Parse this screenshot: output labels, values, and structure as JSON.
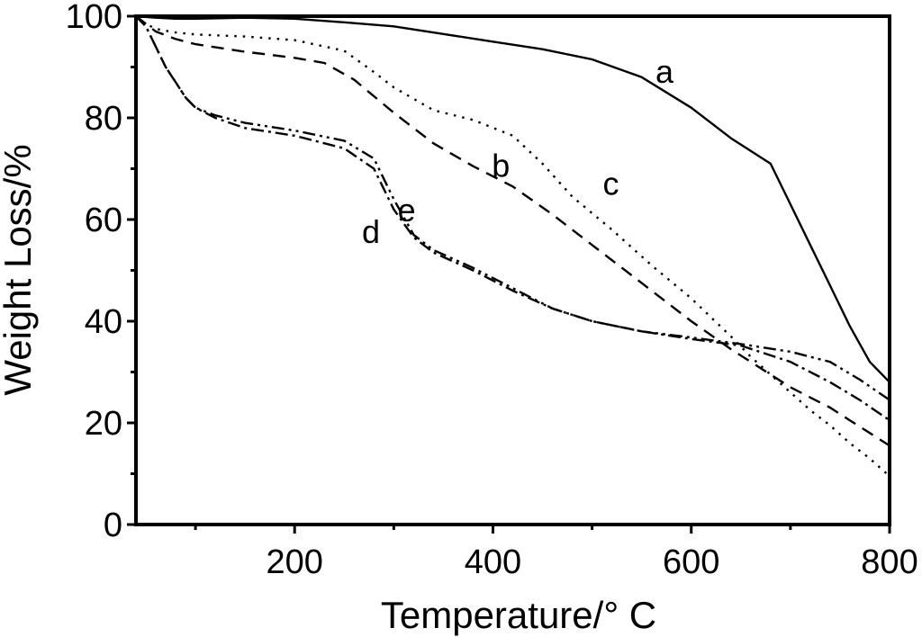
{
  "chart_data": {
    "type": "line",
    "title": "",
    "xlabel": "Temperature/° C",
    "ylabel": "Weight Loss/%",
    "xlim": [
      40,
      800
    ],
    "ylim": [
      0,
      100
    ],
    "x_ticks": [
      200,
      400,
      600,
      800
    ],
    "x_minor_ticks": [
      100,
      300,
      500,
      700
    ],
    "y_ticks": [
      0,
      20,
      40,
      60,
      80,
      100
    ],
    "y_minor_ticks": [
      10,
      30,
      50,
      70,
      90
    ],
    "grid": false,
    "legend": "none",
    "series": [
      {
        "name": "a",
        "label": "a",
        "dash": "solid",
        "label_at": [
          573,
          89
        ],
        "x": [
          40,
          60,
          80,
          100,
          150,
          200,
          250,
          300,
          350,
          400,
          450,
          500,
          550,
          600,
          640,
          680,
          700,
          720,
          740,
          760,
          780,
          800
        ],
        "y": [
          100,
          99.7,
          99.5,
          99.5,
          99.7,
          99.5,
          98.8,
          98,
          96.5,
          95,
          93.5,
          91.5,
          88,
          82,
          76,
          71,
          63,
          55,
          47,
          39,
          32,
          28
        ]
      },
      {
        "name": "b",
        "label": "b",
        "dash": "14 9",
        "label_at": [
          408,
          70.5
        ],
        "x": [
          40,
          50,
          60,
          80,
          100,
          150,
          200,
          230,
          260,
          300,
          340,
          380,
          420,
          460,
          500,
          550,
          600,
          640,
          660,
          680,
          700,
          720,
          740,
          760,
          780,
          800
        ],
        "y": [
          100,
          98.5,
          97,
          95.5,
          94.5,
          93,
          91.8,
          90.8,
          87.5,
          81,
          75,
          70.5,
          66.5,
          61,
          55,
          47.5,
          40,
          34.5,
          32,
          29.5,
          27,
          25,
          23,
          20.5,
          18,
          15.5
        ]
      },
      {
        "name": "c",
        "label": "c",
        "dash": "2.5 7",
        "label_at": [
          519,
          67
        ],
        "x": [
          40,
          50,
          60,
          80,
          100,
          150,
          200,
          250,
          280,
          300,
          340,
          380,
          420,
          450,
          480,
          520,
          560,
          600,
          640,
          660,
          680,
          700,
          720,
          740,
          760,
          780,
          800
        ],
        "y": [
          100,
          98.5,
          97.5,
          96.8,
          96.4,
          96,
          95.3,
          93.2,
          89,
          86,
          81.5,
          79.6,
          76.5,
          71,
          64.5,
          58,
          51,
          44.5,
          37,
          33,
          29.5,
          26,
          22.5,
          19.5,
          16,
          13,
          9.5
        ]
      },
      {
        "name": "d",
        "label": "d",
        "dash": "14 5 3 5",
        "label_at": [
          277,
          57.5
        ],
        "x": [
          40,
          50,
          60,
          70,
          80,
          90,
          100,
          120,
          150,
          200,
          250,
          280,
          300,
          320,
          340,
          380,
          420,
          460,
          500,
          550,
          600,
          650,
          700,
          740,
          770,
          800
        ],
        "y": [
          100,
          98,
          94,
          90,
          87,
          84,
          82,
          80,
          78,
          76.5,
          74,
          70,
          62,
          56.5,
          53.5,
          50,
          46,
          42.5,
          40,
          38,
          36.5,
          35.2,
          32,
          28,
          24.5,
          20.5
        ]
      },
      {
        "name": "e",
        "label": "e",
        "dash": "14 5 3 5 3 5",
        "label_at": [
          313,
          61.8
        ],
        "x": [
          40,
          50,
          60,
          70,
          80,
          90,
          100,
          120,
          150,
          200,
          250,
          280,
          300,
          320,
          340,
          380,
          420,
          460,
          500,
          550,
          600,
          650,
          700,
          740,
          770,
          800
        ],
        "y": [
          100,
          98,
          94,
          90,
          87,
          84,
          82,
          80.5,
          79,
          77.5,
          75.5,
          72,
          64,
          57,
          54,
          50.5,
          46.5,
          42.5,
          40,
          38,
          36.8,
          35.5,
          34,
          32,
          28.5,
          24.5
        ]
      }
    ]
  }
}
